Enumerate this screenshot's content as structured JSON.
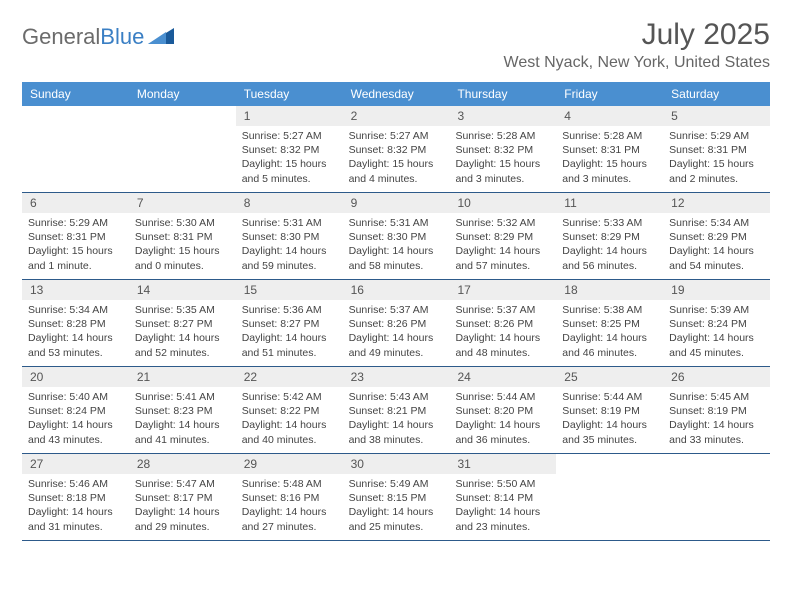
{
  "logo": {
    "text1": "General",
    "text2": "Blue"
  },
  "title": "July 2025",
  "location": "West Nyack, New York, United States",
  "colors": {
    "header_bg": "#4a8fd0",
    "header_text": "#ffffff",
    "daynum_bg": "#eeeeee",
    "week_border": "#2d5a8a",
    "title_color": "#555555",
    "location_color": "#666666",
    "body_text": "#444444",
    "logo_gray": "#6b6b6b",
    "logo_blue": "#3a7fc4"
  },
  "weekdays": [
    "Sunday",
    "Monday",
    "Tuesday",
    "Wednesday",
    "Thursday",
    "Friday",
    "Saturday"
  ],
  "weeks": [
    [
      {
        "empty": true
      },
      {
        "empty": true
      },
      {
        "n": "1",
        "sunrise": "5:27 AM",
        "sunset": "8:32 PM",
        "daylight": "15 hours and 5 minutes."
      },
      {
        "n": "2",
        "sunrise": "5:27 AM",
        "sunset": "8:32 PM",
        "daylight": "15 hours and 4 minutes."
      },
      {
        "n": "3",
        "sunrise": "5:28 AM",
        "sunset": "8:32 PM",
        "daylight": "15 hours and 3 minutes."
      },
      {
        "n": "4",
        "sunrise": "5:28 AM",
        "sunset": "8:31 PM",
        "daylight": "15 hours and 3 minutes."
      },
      {
        "n": "5",
        "sunrise": "5:29 AM",
        "sunset": "8:31 PM",
        "daylight": "15 hours and 2 minutes."
      }
    ],
    [
      {
        "n": "6",
        "sunrise": "5:29 AM",
        "sunset": "8:31 PM",
        "daylight": "15 hours and 1 minute."
      },
      {
        "n": "7",
        "sunrise": "5:30 AM",
        "sunset": "8:31 PM",
        "daylight": "15 hours and 0 minutes."
      },
      {
        "n": "8",
        "sunrise": "5:31 AM",
        "sunset": "8:30 PM",
        "daylight": "14 hours and 59 minutes."
      },
      {
        "n": "9",
        "sunrise": "5:31 AM",
        "sunset": "8:30 PM",
        "daylight": "14 hours and 58 minutes."
      },
      {
        "n": "10",
        "sunrise": "5:32 AM",
        "sunset": "8:29 PM",
        "daylight": "14 hours and 57 minutes."
      },
      {
        "n": "11",
        "sunrise": "5:33 AM",
        "sunset": "8:29 PM",
        "daylight": "14 hours and 56 minutes."
      },
      {
        "n": "12",
        "sunrise": "5:34 AM",
        "sunset": "8:29 PM",
        "daylight": "14 hours and 54 minutes."
      }
    ],
    [
      {
        "n": "13",
        "sunrise": "5:34 AM",
        "sunset": "8:28 PM",
        "daylight": "14 hours and 53 minutes."
      },
      {
        "n": "14",
        "sunrise": "5:35 AM",
        "sunset": "8:27 PM",
        "daylight": "14 hours and 52 minutes."
      },
      {
        "n": "15",
        "sunrise": "5:36 AM",
        "sunset": "8:27 PM",
        "daylight": "14 hours and 51 minutes."
      },
      {
        "n": "16",
        "sunrise": "5:37 AM",
        "sunset": "8:26 PM",
        "daylight": "14 hours and 49 minutes."
      },
      {
        "n": "17",
        "sunrise": "5:37 AM",
        "sunset": "8:26 PM",
        "daylight": "14 hours and 48 minutes."
      },
      {
        "n": "18",
        "sunrise": "5:38 AM",
        "sunset": "8:25 PM",
        "daylight": "14 hours and 46 minutes."
      },
      {
        "n": "19",
        "sunrise": "5:39 AM",
        "sunset": "8:24 PM",
        "daylight": "14 hours and 45 minutes."
      }
    ],
    [
      {
        "n": "20",
        "sunrise": "5:40 AM",
        "sunset": "8:24 PM",
        "daylight": "14 hours and 43 minutes."
      },
      {
        "n": "21",
        "sunrise": "5:41 AM",
        "sunset": "8:23 PM",
        "daylight": "14 hours and 41 minutes."
      },
      {
        "n": "22",
        "sunrise": "5:42 AM",
        "sunset": "8:22 PM",
        "daylight": "14 hours and 40 minutes."
      },
      {
        "n": "23",
        "sunrise": "5:43 AM",
        "sunset": "8:21 PM",
        "daylight": "14 hours and 38 minutes."
      },
      {
        "n": "24",
        "sunrise": "5:44 AM",
        "sunset": "8:20 PM",
        "daylight": "14 hours and 36 minutes."
      },
      {
        "n": "25",
        "sunrise": "5:44 AM",
        "sunset": "8:19 PM",
        "daylight": "14 hours and 35 minutes."
      },
      {
        "n": "26",
        "sunrise": "5:45 AM",
        "sunset": "8:19 PM",
        "daylight": "14 hours and 33 minutes."
      }
    ],
    [
      {
        "n": "27",
        "sunrise": "5:46 AM",
        "sunset": "8:18 PM",
        "daylight": "14 hours and 31 minutes."
      },
      {
        "n": "28",
        "sunrise": "5:47 AM",
        "sunset": "8:17 PM",
        "daylight": "14 hours and 29 minutes."
      },
      {
        "n": "29",
        "sunrise": "5:48 AM",
        "sunset": "8:16 PM",
        "daylight": "14 hours and 27 minutes."
      },
      {
        "n": "30",
        "sunrise": "5:49 AM",
        "sunset": "8:15 PM",
        "daylight": "14 hours and 25 minutes."
      },
      {
        "n": "31",
        "sunrise": "5:50 AM",
        "sunset": "8:14 PM",
        "daylight": "14 hours and 23 minutes."
      },
      {
        "empty": true
      },
      {
        "empty": true
      }
    ]
  ],
  "labels": {
    "sunrise": "Sunrise:",
    "sunset": "Sunset:",
    "daylight": "Daylight:"
  }
}
